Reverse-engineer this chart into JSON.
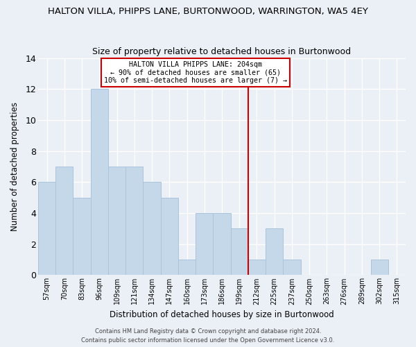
{
  "title": "HALTON VILLA, PHIPPS LANE, BURTONWOOD, WARRINGTON, WA5 4EY",
  "subtitle": "Size of property relative to detached houses in Burtonwood",
  "xlabel": "Distribution of detached houses by size in Burtonwood",
  "ylabel": "Number of detached properties",
  "categories": [
    "57sqm",
    "70sqm",
    "83sqm",
    "96sqm",
    "109sqm",
    "121sqm",
    "134sqm",
    "147sqm",
    "160sqm",
    "173sqm",
    "186sqm",
    "199sqm",
    "212sqm",
    "225sqm",
    "237sqm",
    "250sqm",
    "263sqm",
    "276sqm",
    "289sqm",
    "302sqm",
    "315sqm"
  ],
  "values": [
    6,
    7,
    5,
    12,
    7,
    7,
    6,
    5,
    1,
    4,
    4,
    3,
    1,
    3,
    1,
    0,
    0,
    0,
    0,
    1,
    0
  ],
  "bar_color": "#c5d8ea",
  "bar_edgecolor": "#aac4dc",
  "ylim": [
    0,
    14
  ],
  "yticks": [
    0,
    2,
    4,
    6,
    8,
    10,
    12,
    14
  ],
  "vline_x": 11.5,
  "vline_color": "#cc0000",
  "annotation_title": "HALTON VILLA PHIPPS LANE: 204sqm",
  "annotation_line1": "← 90% of detached houses are smaller (65)",
  "annotation_line2": "10% of semi-detached houses are larger (7) →",
  "annotation_box_color": "#ffffff",
  "annotation_box_edgecolor": "#cc0000",
  "footer1": "Contains HM Land Registry data © Crown copyright and database right 2024.",
  "footer2": "Contains public sector information licensed under the Open Government Licence v3.0.",
  "bg_color": "#eaf0f6",
  "grid_color": "#ffffff",
  "figsize": [
    6.0,
    5.0
  ],
  "dpi": 100
}
